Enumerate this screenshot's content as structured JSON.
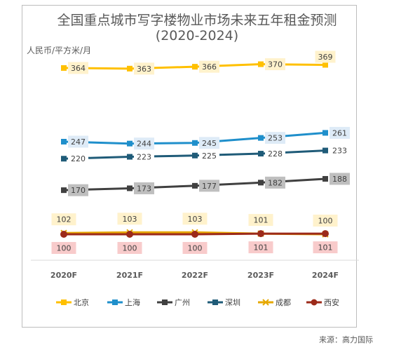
{
  "title_line1": "全国重点城市写字楼物业市场未来五年租金预测",
  "title_line2": "(2020-2024)",
  "unit": "人民币/平方米/月",
  "source": "来源：高力国际",
  "chart_data": {
    "type": "line",
    "categories": [
      "2020F",
      "2021F",
      "2022F",
      "2023F",
      "2024F"
    ],
    "title": "全国重点城市写字楼物业市场未来五年租金预测 (2020-2024)",
    "ylabel": "人民币/平方米/月",
    "legend_position": "bottom",
    "grid": false,
    "series": [
      {
        "name": "北京",
        "values": [
          364,
          363,
          366,
          370,
          369
        ],
        "color": "#FFC000",
        "marker": "square",
        "label_bg": "#FFF2CC"
      },
      {
        "name": "上海",
        "values": [
          247,
          244,
          245,
          253,
          261
        ],
        "color": "#1F8FCB",
        "marker": "square",
        "label_bg": "#DEEBF7"
      },
      {
        "name": "广州",
        "values": [
          170,
          173,
          177,
          182,
          188
        ],
        "color": "#404040",
        "marker": "square",
        "label_bg": "#BFBFBF"
      },
      {
        "name": "深圳",
        "values": [
          220,
          223,
          225,
          228,
          233
        ],
        "color": "#1F5B78",
        "marker": "square",
        "label_bg": "#FFFFFF"
      },
      {
        "name": "成都",
        "values": [
          102,
          103,
          103,
          101,
          100
        ],
        "color": "#E6A800",
        "marker": "x",
        "label_bg": "#FFF2CC"
      },
      {
        "name": "西安",
        "values": [
          100,
          100,
          100,
          101,
          101
        ],
        "color": "#9C2A1A",
        "marker": "circle",
        "label_bg": "#F8CBCB"
      }
    ]
  }
}
